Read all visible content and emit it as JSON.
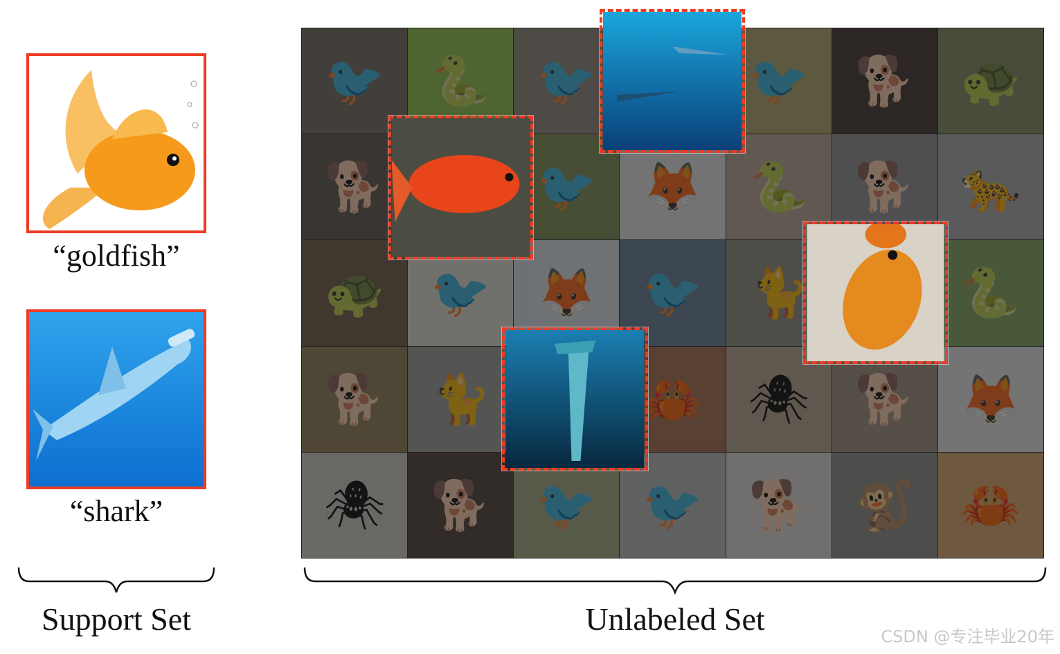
{
  "support_set": {
    "label": "Support Set",
    "items": [
      {
        "caption": "“goldfish”",
        "icon": "goldfish-icon",
        "bg": "#ffffff"
      },
      {
        "caption": "“shark”",
        "icon": "shark-icon",
        "bg": "#1a8fe0"
      }
    ]
  },
  "unlabeled_set": {
    "label": "Unlabeled Set",
    "tiles": [
      {
        "icon": "bird-icon",
        "bg": "#6f675c",
        "glyph": "🐦"
      },
      {
        "icon": "snake-icon",
        "bg": "#8fc346",
        "glyph": "🐍"
      },
      {
        "icon": "bird-icon",
        "bg": "#8c8578",
        "glyph": "🐦"
      },
      {
        "icon": "shark-icon",
        "bg": "#1f78b4",
        "glyph": "🦈"
      },
      {
        "icon": "bird-icon",
        "bg": "#b0a46b",
        "glyph": "🐦"
      },
      {
        "icon": "dog-icon",
        "bg": "#3a3027",
        "glyph": "🐕"
      },
      {
        "icon": "turtle-icon",
        "bg": "#7d8a5e",
        "glyph": "🐢"
      },
      {
        "icon": "dog-icon",
        "bg": "#5a5349",
        "glyph": "🐕"
      },
      {
        "icon": "goldfish-icon",
        "bg": "#6a6352",
        "glyph": "🐟"
      },
      {
        "icon": "bird-icon",
        "bg": "#7a8b52",
        "glyph": "🐦"
      },
      {
        "icon": "fox-icon",
        "bg": "#e4e4e4",
        "glyph": "🦊"
      },
      {
        "icon": "snake-icon",
        "bg": "#b9a393",
        "glyph": "🐍"
      },
      {
        "icon": "dog-icon",
        "bg": "#8f8f92",
        "glyph": "🐕"
      },
      {
        "icon": "leopard-icon",
        "bg": "#a9a9a9",
        "glyph": "🐆"
      },
      {
        "icon": "turtle-icon",
        "bg": "#6b5642",
        "glyph": "🐢"
      },
      {
        "icon": "bird-icon",
        "bg": "#dcdbd3",
        "glyph": "🐦"
      },
      {
        "icon": "fox-icon",
        "bg": "#d9e1e6",
        "glyph": "🦊"
      },
      {
        "icon": "bird-icon",
        "bg": "#617a93",
        "glyph": "🐦"
      },
      {
        "icon": "cat-icon",
        "bg": "#8f8a7d",
        "glyph": "🐈"
      },
      {
        "icon": "goldfish-icon",
        "bg": "#b08f62",
        "glyph": "🐟"
      },
      {
        "icon": "snake-icon",
        "bg": "#7ea25a",
        "glyph": "🐍"
      },
      {
        "icon": "dog-icon",
        "bg": "#8f7a50",
        "glyph": "🐕"
      },
      {
        "icon": "cat-icon",
        "bg": "#9a9a98",
        "glyph": "🐈"
      },
      {
        "icon": "shark-icon",
        "bg": "#1b5f86",
        "glyph": "🦈"
      },
      {
        "icon": "crab-icon",
        "bg": "#a26a4a",
        "glyph": "🦀"
      },
      {
        "icon": "spider-icon",
        "bg": "#b6a48e",
        "glyph": "🕷"
      },
      {
        "icon": "dog-icon",
        "bg": "#9c8d7a",
        "glyph": "🐕"
      },
      {
        "icon": "fox-icon",
        "bg": "#e6e6e6",
        "glyph": "🦊"
      },
      {
        "icon": "spider-icon",
        "bg": "#cfc9c0",
        "glyph": "🕷"
      },
      {
        "icon": "dog-icon",
        "bg": "#4a3a32",
        "glyph": "🐕"
      },
      {
        "icon": "bird-icon",
        "bg": "#a3a880",
        "glyph": "🐦"
      },
      {
        "icon": "bird-icon",
        "bg": "#b4b8b8",
        "glyph": "🐦"
      },
      {
        "icon": "dog-icon",
        "bg": "#dcdad6",
        "glyph": "🐕"
      },
      {
        "icon": "monkey-icon",
        "bg": "#8a8a84",
        "glyph": "🐒"
      },
      {
        "icon": "crab-icon",
        "bg": "#d9a36a",
        "glyph": "🦀"
      }
    ],
    "highlighted": [
      {
        "name": "highlight-shark-top",
        "icon": "shark-icon",
        "kind": "shark"
      },
      {
        "name": "highlight-goldfish-left",
        "icon": "goldfish-icon",
        "kind": "goldfish"
      },
      {
        "name": "highlight-goldfish-right",
        "icon": "goldfish-icon",
        "kind": "goldfish"
      },
      {
        "name": "highlight-shark-bottom",
        "icon": "shark-icon",
        "kind": "shark"
      }
    ]
  },
  "colors": {
    "highlight": "#ee3b24",
    "shark_bg": "#1a8fe0",
    "goldfish": "#f59a1b"
  },
  "watermark": "CSDN @专注毕业20年"
}
